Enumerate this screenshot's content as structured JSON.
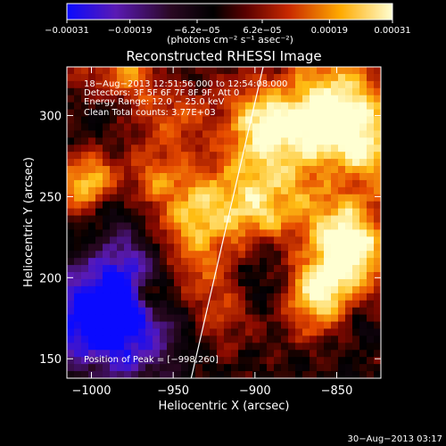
{
  "chart_data": {
    "type": "heatmap",
    "title": "Reconstructed RHESSI Image",
    "xlabel": "Heliocentric X (arcsec)",
    "ylabel": "Heliocentric Y (arcsec)",
    "xlim": [
      -1015,
      -823
    ],
    "ylim": [
      138,
      330
    ],
    "x_ticks": [
      -1000,
      -950,
      -900,
      -850
    ],
    "x_tick_labels": [
      "−1000",
      "−950",
      "−900",
      "−850"
    ],
    "y_ticks": [
      150,
      200,
      250,
      300
    ],
    "y_tick_labels": [
      "150",
      "200",
      "250",
      "300"
    ],
    "colorbar": {
      "range": [
        -0.00031,
        0.00031
      ],
      "ticks": [
        -0.00031,
        -0.00019,
        -6.2e-05,
        6.2e-05,
        0.00019,
        0.00031
      ],
      "tick_labels": [
        "−0.00031",
        "−0.00019",
        "−6.2e−05",
        "6.2e−05",
        "0.00019",
        "0.00031"
      ],
      "units_text": "(photons cm⁻² s⁻¹ asec⁻²)",
      "colormap": [
        "#0a0aff",
        "#5a1ab4",
        "#2a0822",
        "#000000",
        "#8a0a00",
        "#e64a00",
        "#ffbe14",
        "#ffffd2"
      ]
    },
    "annotations": [
      "18−Aug−2013 12:51:56.000 to 12:54:08.000",
      "Detectors: 3F 5F 6F 7F 8F 9F, Att 0",
      "Energy Range: 12.0 − 25.0 keV",
      "Clean     Total counts: 3.77E+03"
    ],
    "peak_text": "Position of Peak = [−998,260]",
    "peak_position": [
      -998,
      260
    ],
    "limb_line": {
      "x": [
        -939,
        -895
      ],
      "y": [
        138,
        330
      ]
    },
    "grid_cells": [
      44,
      44
    ]
  },
  "footer": {
    "date": "30−Aug−2013 03:17"
  }
}
